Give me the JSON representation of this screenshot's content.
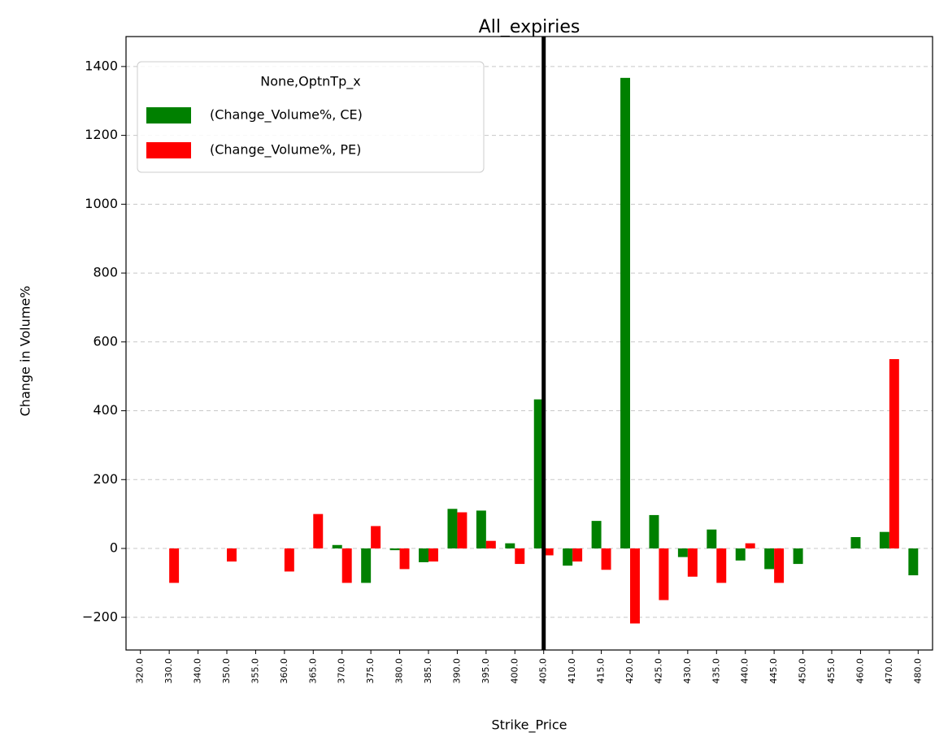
{
  "chart_data": {
    "type": "bar",
    "title": "All_expiries",
    "xlabel": "Strike_Price",
    "ylabel": "Change in Volume%",
    "legend_title": "None,OptnTp_x",
    "legend_loc": "upper left",
    "grid": true,
    "vline_category": "405.0",
    "categories": [
      "320.0",
      "330.0",
      "340.0",
      "350.0",
      "355.0",
      "360.0",
      "365.0",
      "370.0",
      "375.0",
      "380.0",
      "385.0",
      "390.0",
      "395.0",
      "400.0",
      "405.0",
      "410.0",
      "415.0",
      "420.0",
      "425.0",
      "430.0",
      "435.0",
      "440.0",
      "445.0",
      "450.0",
      "455.0",
      "460.0",
      "470.0",
      "480.0"
    ],
    "series": [
      {
        "name": "(Change_Volume%, CE)",
        "color": "#008000",
        "values": [
          null,
          null,
          null,
          null,
          null,
          null,
          null,
          10,
          -100,
          -5,
          -40,
          115,
          110,
          15,
          433,
          -50,
          80,
          1367,
          97,
          -25,
          55,
          -35,
          -60,
          -45,
          null,
          33,
          48,
          -78
        ]
      },
      {
        "name": "(Change_Volume%, PE)",
        "color": "#ff0000",
        "values": [
          null,
          -100,
          null,
          -38,
          null,
          -67,
          100,
          -100,
          65,
          -60,
          -38,
          105,
          22,
          -45,
          -20,
          -38,
          -62,
          -218,
          -150,
          -82,
          -100,
          15,
          -100,
          null,
          null,
          null,
          550,
          null
        ]
      }
    ],
    "ylim": [
      -295,
      1487
    ],
    "yticks": [
      {
        "value": -200,
        "label": "−200"
      },
      0,
      200,
      400,
      600,
      800,
      1000,
      1200,
      1400
    ]
  }
}
